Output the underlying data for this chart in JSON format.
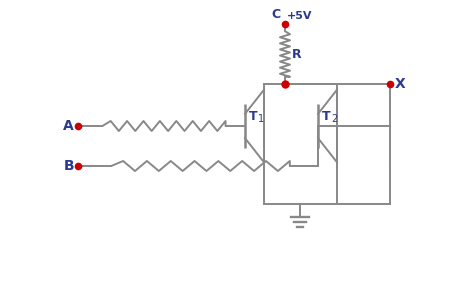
{
  "bg_color": "#ffffff",
  "line_color": "#888888",
  "red_color": "#cc0000",
  "blue_color": "#2b3990",
  "label_A": "A",
  "label_B": "B",
  "label_C": "C",
  "label_R": "R",
  "label_X": "X",
  "label_T1": "T",
  "label_T2": "T",
  "label_sub1": "1",
  "label_sub2": "2",
  "label_vcc": "+5V",
  "figsize": [
    4.74,
    2.84
  ],
  "dpi": 100
}
